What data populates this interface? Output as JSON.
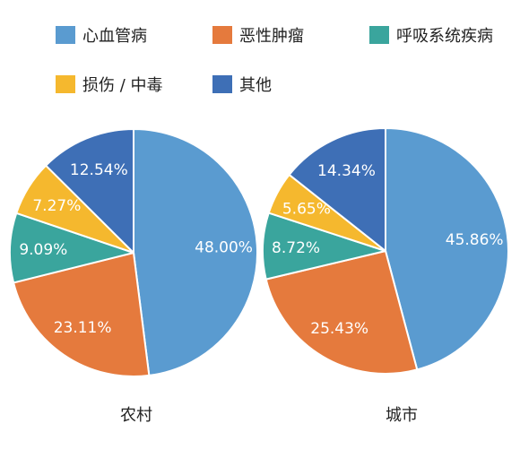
{
  "chart_data": {
    "type": "pie",
    "legend": {
      "placement": "top",
      "entries": [
        {
          "label": "心血管病",
          "color": "#5a9bd0"
        },
        {
          "label": "恶性肿瘤",
          "color": "#e57a3d"
        },
        {
          "label": "呼吸系统疾病",
          "color": "#3aa59d"
        },
        {
          "label": "损伤 / 中毒",
          "color": "#f5b82e"
        },
        {
          "label": "其他",
          "color": "#3e6fb6"
        }
      ]
    },
    "charts": [
      {
        "label": "农村",
        "slices": [
          {
            "category": "心血管病",
            "value": 48.0,
            "label": "48.00%"
          },
          {
            "category": "恶性肿瘤",
            "value": 23.11,
            "label": "23.11%"
          },
          {
            "category": "呼吸系统疾病",
            "value": 9.09,
            "label": "9.09%"
          },
          {
            "category": "损伤 / 中毒",
            "value": 7.27,
            "label": "7.27%"
          },
          {
            "category": "其他",
            "value": 12.54,
            "label": "12.54%"
          }
        ]
      },
      {
        "label": "城市",
        "slices": [
          {
            "category": "心血管病",
            "value": 45.86,
            "label": "45.86%"
          },
          {
            "category": "恶性肿瘤",
            "value": 25.43,
            "label": "25.43%"
          },
          {
            "category": "呼吸系统疾病",
            "value": 8.72,
            "label": "8.72%"
          },
          {
            "category": "损伤 / 中毒",
            "value": 5.65,
            "label": "5.65%"
          },
          {
            "category": "其他",
            "value": 14.34,
            "label": "14.34%"
          }
        ]
      }
    ]
  }
}
